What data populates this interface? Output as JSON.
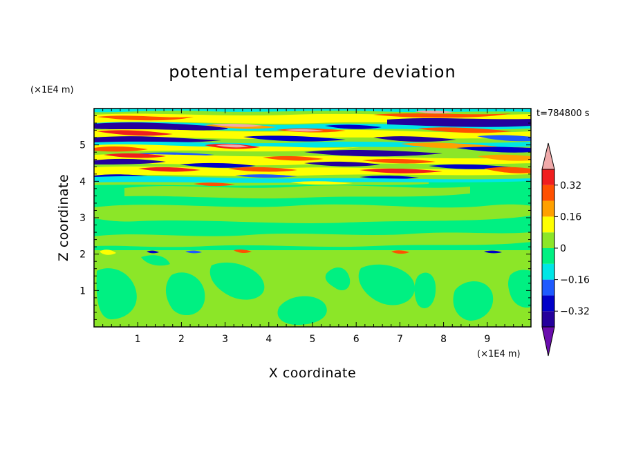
{
  "chart_data": {
    "type": "heatmap",
    "title": "potential temperature deviation",
    "xlabel": "X coordinate",
    "ylabel": "Z coordinate",
    "x_unit": "(×1E4 m)",
    "y_unit": "(×1E4 m)",
    "time_label": "t=784800 s",
    "xlim": [
      0,
      10
    ],
    "ylim": [
      0,
      6
    ],
    "x_ticks": [
      "1",
      "2",
      "3",
      "4",
      "5",
      "6",
      "7",
      "8",
      "9"
    ],
    "y_ticks": [
      "1",
      "2",
      "3",
      "4",
      "5"
    ],
    "colorbar": {
      "levels": [
        -0.4,
        -0.32,
        -0.24,
        -0.16,
        -0.08,
        0,
        0.08,
        0.16,
        0.24,
        0.32,
        0.4
      ],
      "tick_labels": [
        "0.32",
        "0.16",
        "0",
        "−0.16",
        "−0.32"
      ],
      "tick_values": [
        0.32,
        0.16,
        0,
        -0.16,
        -0.32
      ],
      "colors": [
        "#6a0dad",
        "#24009c",
        "#0000c8",
        "#1e5aff",
        "#00e6e6",
        "#00f082",
        "#8ce628",
        "#ffff00",
        "#ffa000",
        "#ff5000",
        "#f01e1e",
        "#f0aaaa"
      ]
    },
    "fields": [
      {
        "region": "upper layer",
        "z_range": [
          4.0,
          6.0
        ],
        "character": "strong banded oscillations between -0.4 and +0.4"
      },
      {
        "region": "middle layer",
        "z_range": [
          2.1,
          4.0
        ],
        "character": "weak values between -0.08 and +0.08"
      },
      {
        "region": "lower layer",
        "z_range": [
          0,
          2.1
        ],
        "character": "convective cells between -0.08 and +0.08"
      }
    ]
  }
}
